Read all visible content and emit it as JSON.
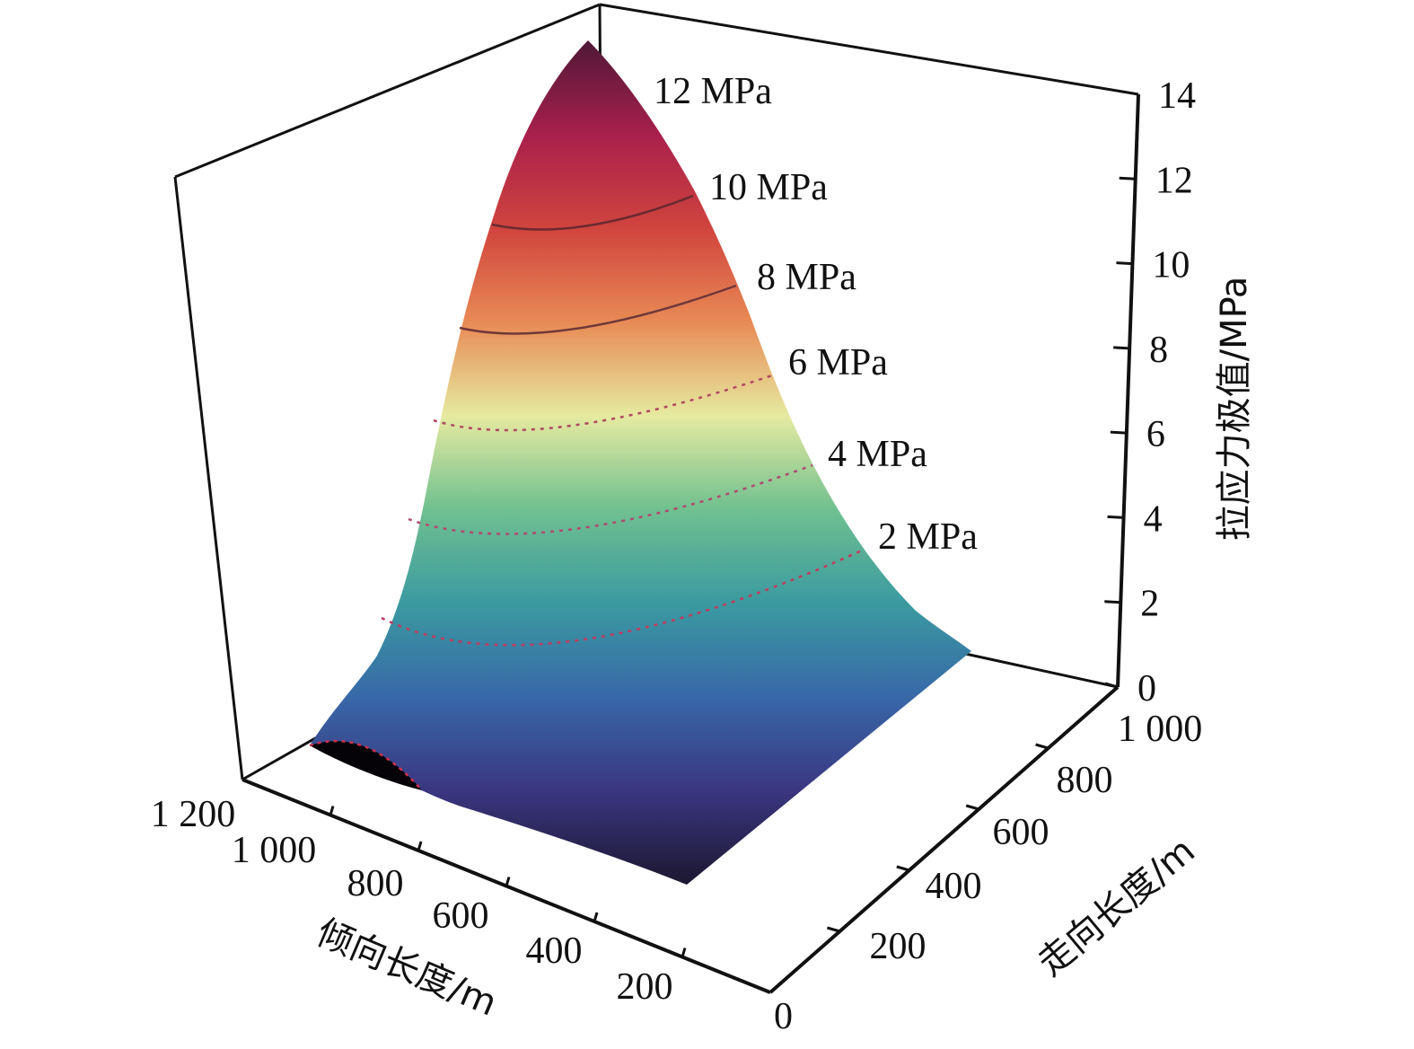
{
  "chart_data": {
    "type": "surface",
    "title": "",
    "x_axis": {
      "label": "倾向长度/m",
      "range": [
        0,
        1200
      ],
      "ticks": [
        0,
        200,
        400,
        600,
        800,
        1000,
        1200
      ],
      "tick_labels": [
        "0",
        "200",
        "400",
        "600",
        "800",
        "1 000",
        "1 200"
      ]
    },
    "y_axis": {
      "label": "走向长度/m",
      "range": [
        0,
        1000
      ],
      "ticks": [
        200,
        400,
        600,
        800,
        1000
      ],
      "tick_labels": [
        "200",
        "400",
        "600",
        "800",
        "1 000"
      ]
    },
    "z_axis": {
      "label": "拉应力极值/MPa",
      "range": [
        0,
        14
      ],
      "ticks": [
        0,
        2,
        4,
        6,
        8,
        10,
        12,
        14
      ],
      "tick_labels": [
        "0",
        "2",
        "4",
        "6",
        "8",
        "10",
        "12",
        "14"
      ]
    },
    "contours": [
      {
        "value": 12,
        "label": "12 MPa",
        "style": "none"
      },
      {
        "value": 10,
        "label": "10 MPa",
        "style": "solid"
      },
      {
        "value": 8,
        "label": "8 MPa",
        "style": "solid"
      },
      {
        "value": 6,
        "label": "6 MPa",
        "style": "dashed"
      },
      {
        "value": 4,
        "label": "4 MPa",
        "style": "dashed"
      },
      {
        "value": 2,
        "label": "2 MPa",
        "style": "dashed"
      }
    ],
    "peak_value_approx": 14,
    "colormap": [
      "#1c1730",
      "#3a3680",
      "#3868a8",
      "#3a9aa0",
      "#70c090",
      "#e6eaa0",
      "#e88a55",
      "#d0443e",
      "#a8204c",
      "#4f1836"
    ]
  }
}
